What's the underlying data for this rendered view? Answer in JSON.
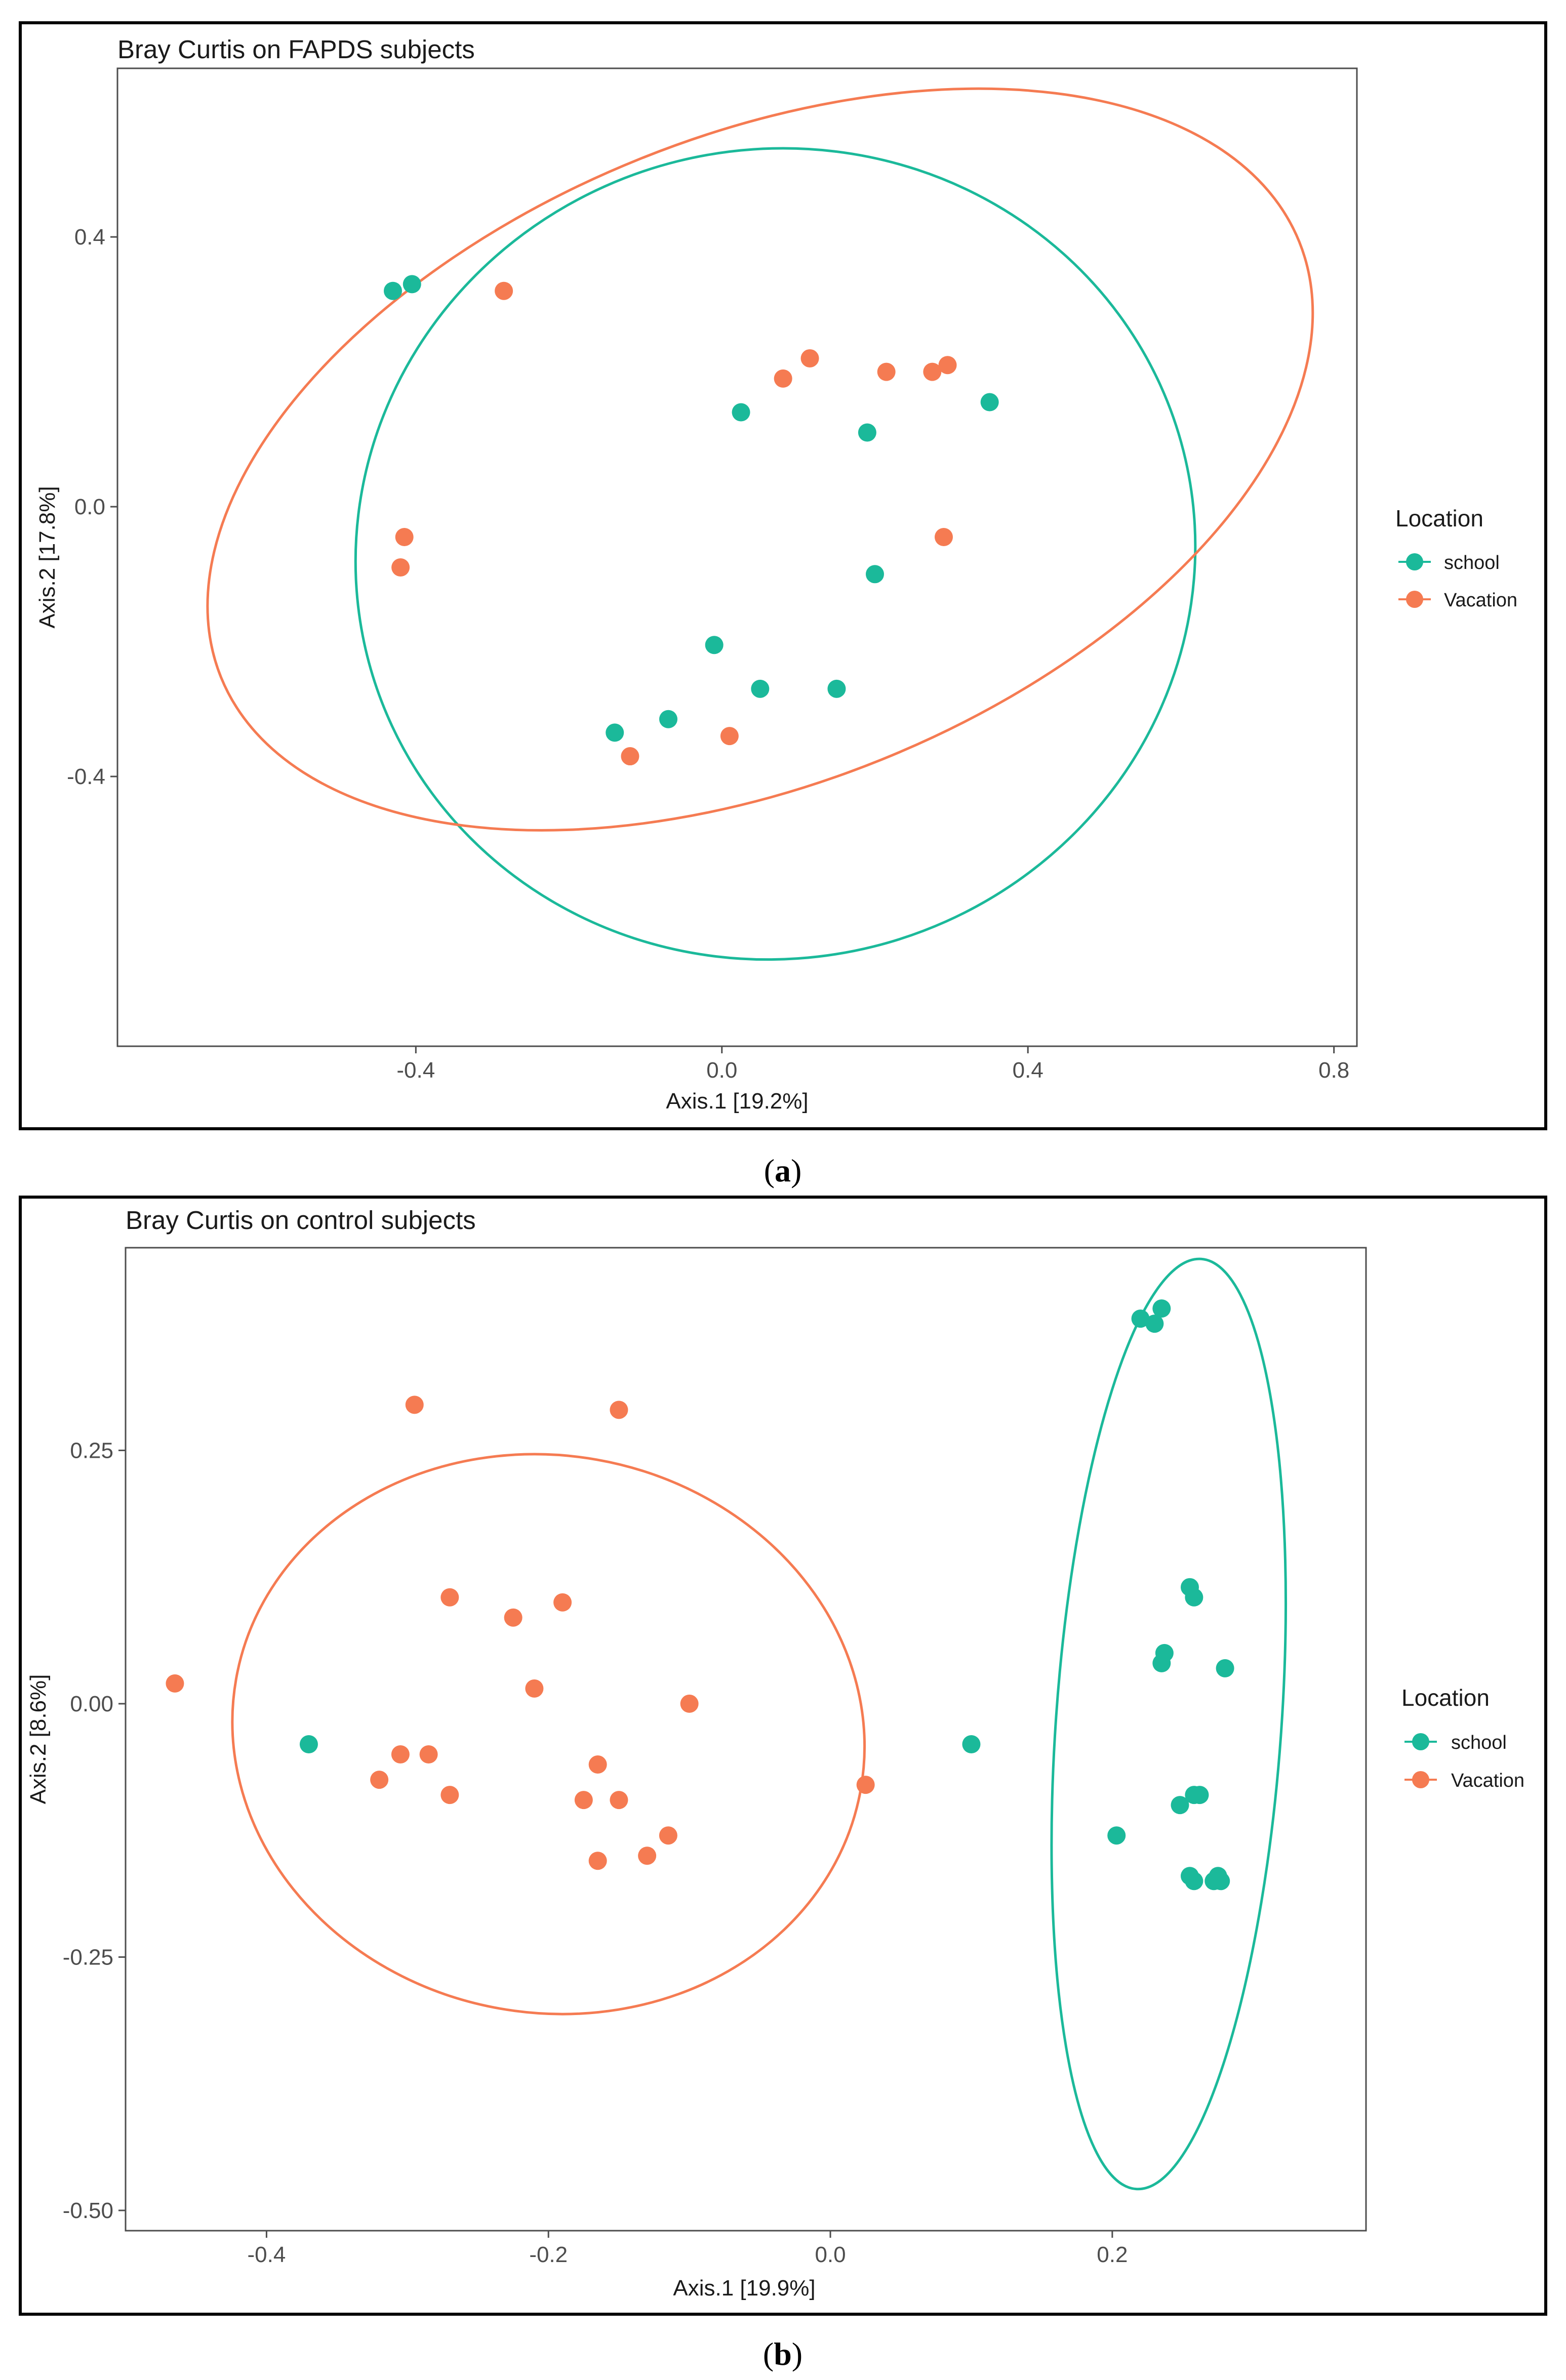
{
  "chart_data": [
    {
      "type": "scatter",
      "title": "Bray Curtis on FAPDS subjects",
      "xlabel": "Axis.1   [19.2%]",
      "ylabel": "Axis.2   [17.8%]",
      "xlim": [
        -0.79,
        0.83
      ],
      "ylim": [
        -0.8,
        0.65
      ],
      "xticks": [
        -0.4,
        0.0,
        0.4,
        0.8
      ],
      "xtick_labels": [
        "-0.4",
        "0.0",
        "0.4",
        "0.8"
      ],
      "yticks": [
        -0.4,
        0.0,
        0.4
      ],
      "ytick_labels": [
        "-0.4",
        "0.0",
        "0.4"
      ],
      "grid": false,
      "legend_title": "Location",
      "legend_position": "right",
      "caption_letter": "a",
      "series": [
        {
          "name": "school",
          "color": "#1bb99a",
          "x": [
            -0.43,
            -0.405,
            0.025,
            0.19,
            0.35,
            0.2,
            -0.01,
            0.05,
            0.15,
            -0.14,
            -0.07
          ],
          "y": [
            0.32,
            0.33,
            0.14,
            0.11,
            0.155,
            -0.1,
            -0.205,
            -0.27,
            -0.27,
            -0.335,
            -0.315
          ],
          "ellipse": {
            "cx": 0.07,
            "cy": -0.07,
            "rx": 0.55,
            "ry": 0.6,
            "angle": 14
          }
        },
        {
          "name": "Vacation",
          "color": "#f57b52",
          "x": [
            -0.285,
            0.08,
            0.115,
            0.215,
            0.275,
            0.295,
            -0.415,
            -0.42,
            0.29,
            0.01,
            -0.12
          ],
          "y": [
            0.32,
            0.19,
            0.22,
            0.2,
            0.2,
            0.21,
            -0.045,
            -0.09,
            -0.045,
            -0.34,
            -0.37
          ],
          "ellipse": {
            "cx": 0.05,
            "cy": 0.07,
            "rx": 0.76,
            "ry": 0.48,
            "angle": 22
          }
        }
      ]
    },
    {
      "type": "scatter",
      "title": "Bray Curtis on control subjects",
      "xlabel": "Axis.1   [19.9%]",
      "ylabel": "Axis.2   [8.6%]",
      "xlim": [
        -0.5,
        0.38
      ],
      "ylim": [
        -0.52,
        0.45
      ],
      "xticks": [
        -0.4,
        -0.2,
        0.0,
        0.2
      ],
      "xtick_labels": [
        "-0.4",
        "-0.2",
        "0.0",
        "0.2"
      ],
      "yticks": [
        -0.5,
        -0.25,
        0.0,
        0.25
      ],
      "ytick_labels": [
        "-0.50",
        "-0.25",
        "0.00",
        "0.25"
      ],
      "grid": false,
      "legend_title": "Location",
      "legend_position": "right",
      "caption_letter": "b",
      "series": [
        {
          "name": "school",
          "color": "#1bb99a",
          "x": [
            -0.37,
            0.1,
            0.22,
            0.23,
            0.235,
            0.255,
            0.258,
            0.237,
            0.235,
            0.28,
            0.248,
            0.258,
            0.262,
            0.203,
            0.255,
            0.258,
            0.275,
            0.272,
            0.277
          ],
          "y": [
            -0.04,
            -0.04,
            0.38,
            0.375,
            0.39,
            0.115,
            0.105,
            0.05,
            0.04,
            0.035,
            -0.1,
            -0.09,
            -0.09,
            -0.13,
            -0.17,
            -0.175,
            -0.17,
            -0.175,
            -0.175
          ],
          "ellipse": {
            "cx": 0.24,
            "cy": -0.02,
            "rx": 0.08,
            "ry": 0.46,
            "angle": -4
          }
        },
        {
          "name": "Vacation",
          "color": "#f57b52",
          "x": [
            -0.295,
            -0.15,
            -0.465,
            -0.27,
            -0.225,
            -0.19,
            -0.21,
            -0.1,
            -0.32,
            -0.305,
            -0.285,
            -0.27,
            -0.165,
            -0.175,
            -0.15,
            -0.165,
            -0.13,
            -0.115,
            0.025
          ],
          "y": [
            0.295,
            0.29,
            0.02,
            0.105,
            0.085,
            0.1,
            0.015,
            0.0,
            -0.075,
            -0.05,
            -0.05,
            -0.09,
            -0.06,
            -0.095,
            -0.095,
            -0.155,
            -0.15,
            -0.13,
            -0.08
          ],
          "ellipse": {
            "cx": -0.2,
            "cy": -0.03,
            "rx": 0.225,
            "ry": 0.275,
            "angle": -10
          }
        }
      ]
    }
  ]
}
